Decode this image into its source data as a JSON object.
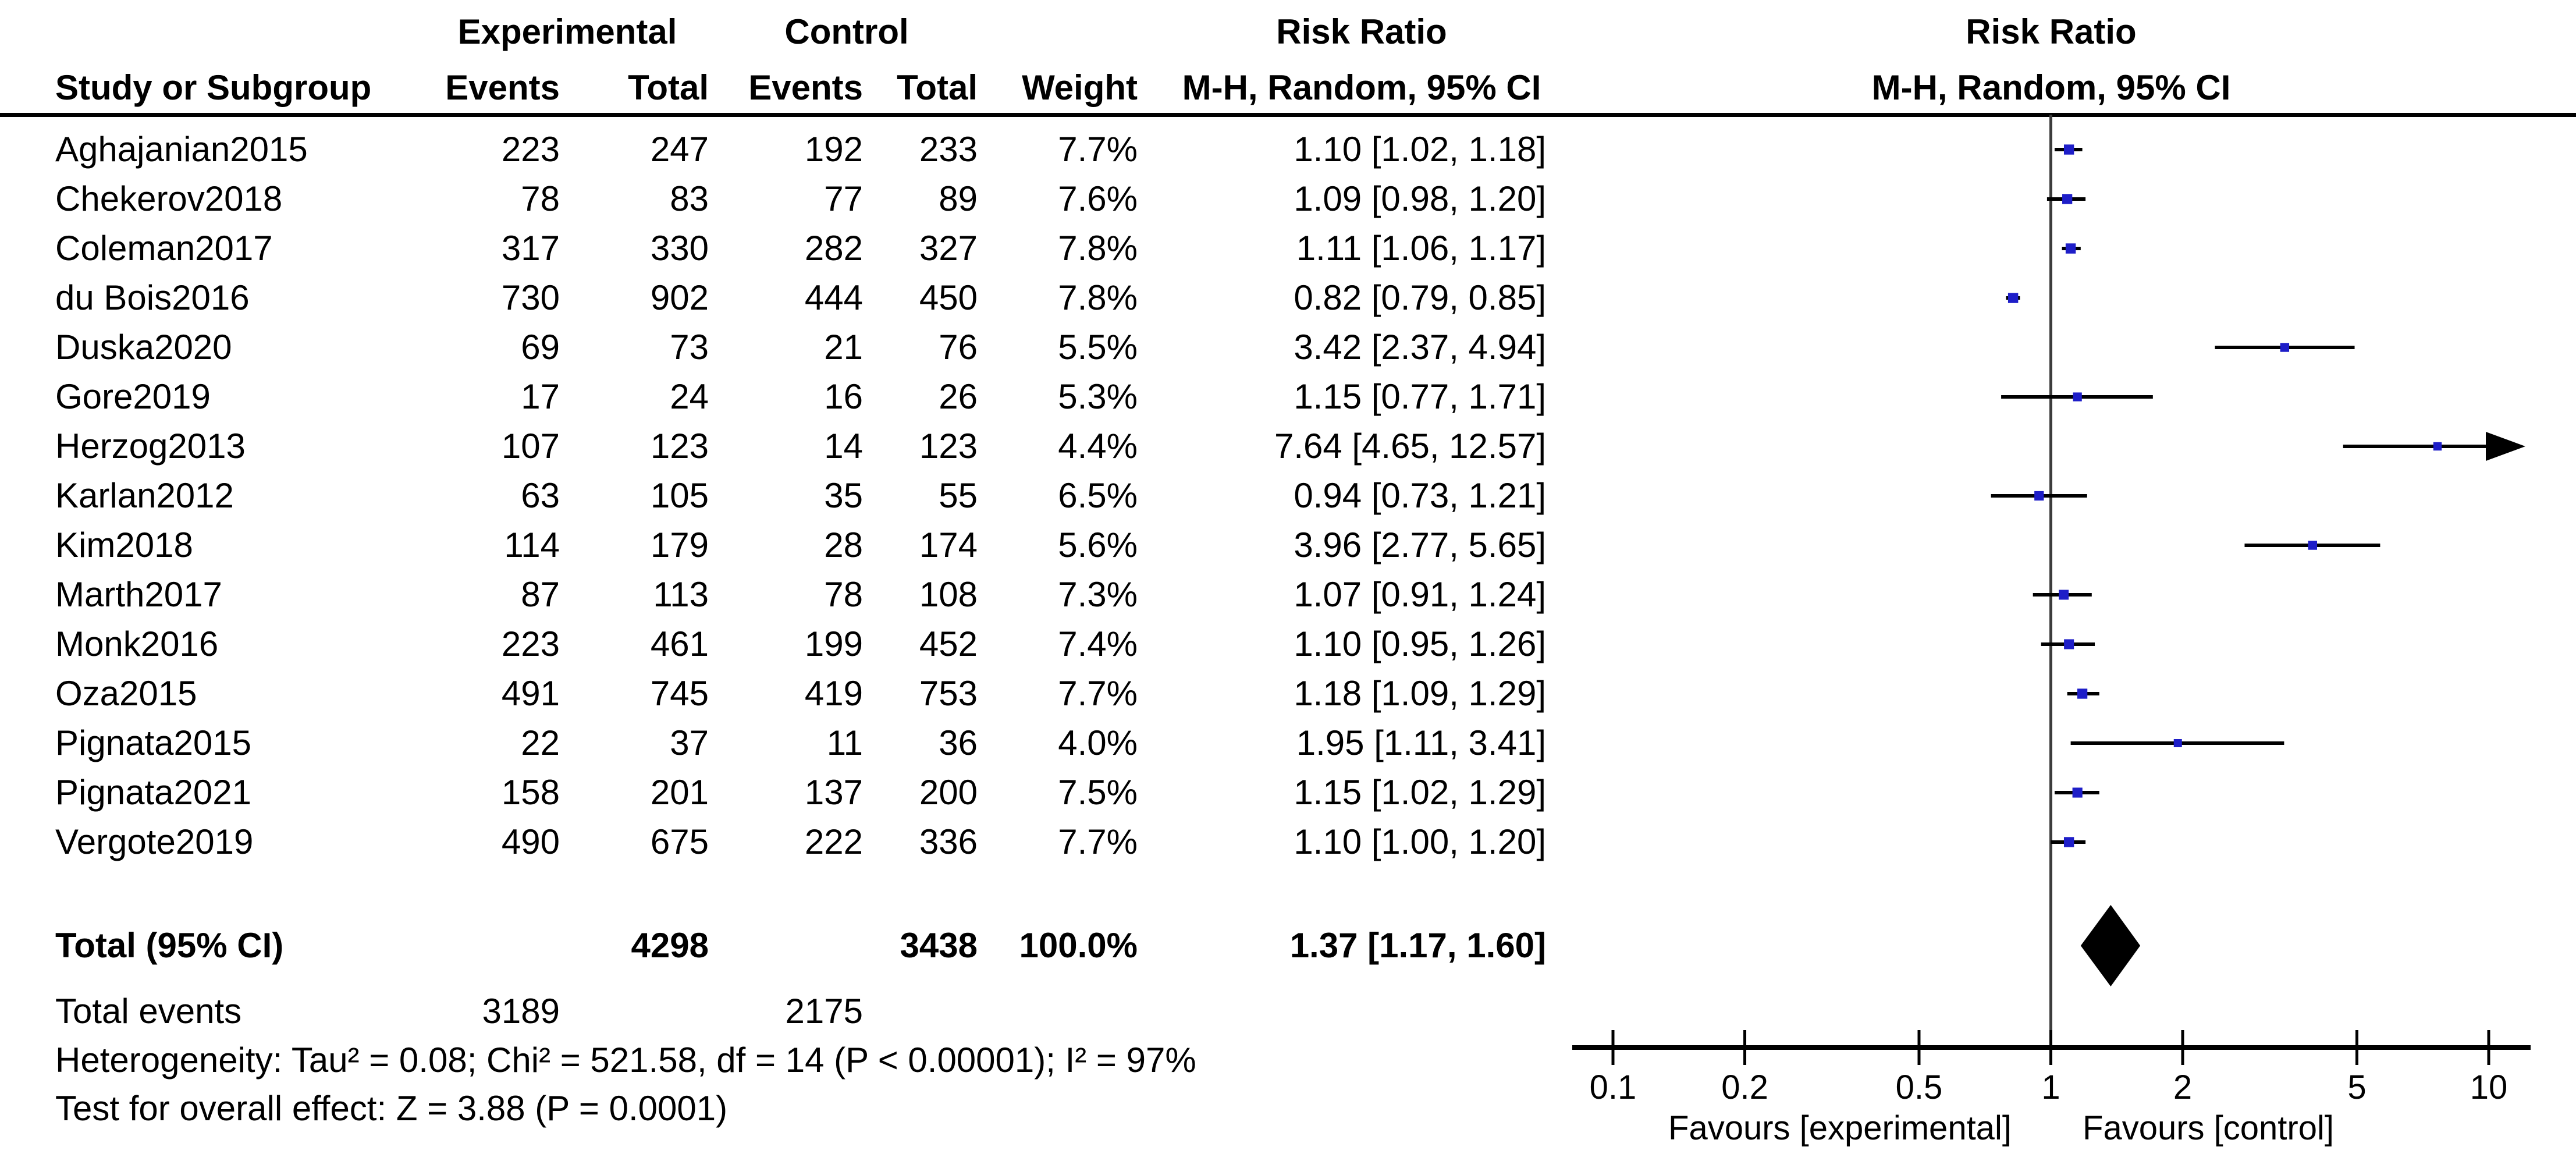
{
  "colors": {
    "marker_blue": "#1e1ec8",
    "line_black": "#000000",
    "no_effect_line": "#3c3c3c",
    "diamond": "#000000"
  },
  "header": {
    "col_study": "Study or Subgroup",
    "group_experimental": "Experimental",
    "group_control": "Control",
    "col_events": "Events",
    "col_total": "Total",
    "col_weight": "Weight",
    "rr_title_left": "Risk Ratio",
    "rr_subtitle_left": "M-H, Random, 95% CI",
    "rr_title_plot": "Risk Ratio",
    "rr_subtitle_plot": "M-H, Random, 95% CI"
  },
  "studies": [
    {
      "name": "Aghajanian2015",
      "exp_events": "223",
      "exp_total": "247",
      "ctl_events": "192",
      "ctl_total": "233",
      "weight": "7.7%",
      "weight_pct": 7.7,
      "rr_text": "1.10 [1.02, 1.18]",
      "rr": 1.1,
      "lo": 1.02,
      "hi": 1.18
    },
    {
      "name": "Chekerov2018",
      "exp_events": "78",
      "exp_total": "83",
      "ctl_events": "77",
      "ctl_total": "89",
      "weight": "7.6%",
      "weight_pct": 7.6,
      "rr_text": "1.09 [0.98, 1.20]",
      "rr": 1.09,
      "lo": 0.98,
      "hi": 1.2
    },
    {
      "name": "Coleman2017",
      "exp_events": "317",
      "exp_total": "330",
      "ctl_events": "282",
      "ctl_total": "327",
      "weight": "7.8%",
      "weight_pct": 7.8,
      "rr_text": "1.11 [1.06, 1.17]",
      "rr": 1.11,
      "lo": 1.06,
      "hi": 1.17
    },
    {
      "name": "du Bois2016",
      "exp_events": "730",
      "exp_total": "902",
      "ctl_events": "444",
      "ctl_total": "450",
      "weight": "7.8%",
      "weight_pct": 7.8,
      "rr_text": "0.82 [0.79, 0.85]",
      "rr": 0.82,
      "lo": 0.79,
      "hi": 0.85
    },
    {
      "name": "Duska2020",
      "exp_events": "69",
      "exp_total": "73",
      "ctl_events": "21",
      "ctl_total": "76",
      "weight": "5.5%",
      "weight_pct": 5.5,
      "rr_text": "3.42 [2.37, 4.94]",
      "rr": 3.42,
      "lo": 2.37,
      "hi": 4.94
    },
    {
      "name": "Gore2019",
      "exp_events": "17",
      "exp_total": "24",
      "ctl_events": "16",
      "ctl_total": "26",
      "weight": "5.3%",
      "weight_pct": 5.3,
      "rr_text": "1.15 [0.77, 1.71]",
      "rr": 1.15,
      "lo": 0.77,
      "hi": 1.71
    },
    {
      "name": "Herzog2013",
      "exp_events": "107",
      "exp_total": "123",
      "ctl_events": "14",
      "ctl_total": "123",
      "weight": "4.4%",
      "weight_pct": 4.4,
      "rr_text": "7.64 [4.65, 12.57]",
      "rr": 7.64,
      "lo": 4.65,
      "hi": 12.57,
      "arrow_high": true
    },
    {
      "name": "Karlan2012",
      "exp_events": "63",
      "exp_total": "105",
      "ctl_events": "35",
      "ctl_total": "55",
      "weight": "6.5%",
      "weight_pct": 6.5,
      "rr_text": "0.94 [0.73, 1.21]",
      "rr": 0.94,
      "lo": 0.73,
      "hi": 1.21
    },
    {
      "name": "Kim2018",
      "exp_events": "114",
      "exp_total": "179",
      "ctl_events": "28",
      "ctl_total": "174",
      "weight": "5.6%",
      "weight_pct": 5.6,
      "rr_text": "3.96 [2.77, 5.65]",
      "rr": 3.96,
      "lo": 2.77,
      "hi": 5.65
    },
    {
      "name": "Marth2017",
      "exp_events": "87",
      "exp_total": "113",
      "ctl_events": "78",
      "ctl_total": "108",
      "weight": "7.3%",
      "weight_pct": 7.3,
      "rr_text": "1.07 [0.91, 1.24]",
      "rr": 1.07,
      "lo": 0.91,
      "hi": 1.24
    },
    {
      "name": "Monk2016",
      "exp_events": "223",
      "exp_total": "461",
      "ctl_events": "199",
      "ctl_total": "452",
      "weight": "7.4%",
      "weight_pct": 7.4,
      "rr_text": "1.10 [0.95, 1.26]",
      "rr": 1.1,
      "lo": 0.95,
      "hi": 1.26
    },
    {
      "name": "Oza2015",
      "exp_events": "491",
      "exp_total": "745",
      "ctl_events": "419",
      "ctl_total": "753",
      "weight": "7.7%",
      "weight_pct": 7.7,
      "rr_text": "1.18 [1.09, 1.29]",
      "rr": 1.18,
      "lo": 1.09,
      "hi": 1.29
    },
    {
      "name": "Pignata2015",
      "exp_events": "22",
      "exp_total": "37",
      "ctl_events": "11",
      "ctl_total": "36",
      "weight": "4.0%",
      "weight_pct": 4.0,
      "rr_text": "1.95 [1.11, 3.41]",
      "rr": 1.95,
      "lo": 1.11,
      "hi": 3.41
    },
    {
      "name": "Pignata2021",
      "exp_events": "158",
      "exp_total": "201",
      "ctl_events": "137",
      "ctl_total": "200",
      "weight": "7.5%",
      "weight_pct": 7.5,
      "rr_text": "1.15 [1.02, 1.29]",
      "rr": 1.15,
      "lo": 1.02,
      "hi": 1.29
    },
    {
      "name": "Vergote2019",
      "exp_events": "490",
      "exp_total": "675",
      "ctl_events": "222",
      "ctl_total": "336",
      "weight": "7.7%",
      "weight_pct": 7.7,
      "rr_text": "1.10 [1.00, 1.20]",
      "rr": 1.1,
      "lo": 1.0,
      "hi": 1.2
    }
  ],
  "totals": {
    "label": "Total (95% CI)",
    "exp_total": "4298",
    "ctl_total": "3438",
    "weight": "100.0%",
    "rr_text": "1.37 [1.17, 1.60]",
    "rr": 1.37,
    "lo": 1.17,
    "hi": 1.6,
    "events_label": "Total events",
    "exp_events": "3189",
    "ctl_events": "2175"
  },
  "footnotes": {
    "heterogeneity": "Heterogeneity: Tau² = 0.08; Chi² = 521.58, df = 14 (P < 0.00001); I² = 97%",
    "overall_effect": "Test for overall effect: Z = 3.88 (P = 0.0001)"
  },
  "axis": {
    "ticks": [
      0.1,
      0.2,
      0.5,
      1,
      2,
      5,
      10
    ],
    "tick_labels": [
      "0.1",
      "0.2",
      "0.5",
      "1",
      "2",
      "5",
      "10"
    ],
    "favours_left": "Favours [experimental]",
    "favours_right": "Favours [control]"
  },
  "chart_data": {
    "type": "scatter",
    "subtype": "forest-plot-meta-analysis",
    "title": "Risk Ratio",
    "effect_measure": "M-H, Random, 95% CI",
    "x_scale": "log10",
    "x_ticks": [
      0.1,
      0.2,
      0.5,
      1,
      2,
      5,
      10
    ],
    "x_range": [
      0.08,
      12.5
    ],
    "no_effect_value": 1,
    "series": [
      {
        "study": "Aghajanian2015",
        "rr": 1.1,
        "ci_low": 1.02,
        "ci_high": 1.18,
        "weight_pct": 7.7
      },
      {
        "study": "Chekerov2018",
        "rr": 1.09,
        "ci_low": 0.98,
        "ci_high": 1.2,
        "weight_pct": 7.6
      },
      {
        "study": "Coleman2017",
        "rr": 1.11,
        "ci_low": 1.06,
        "ci_high": 1.17,
        "weight_pct": 7.8
      },
      {
        "study": "du Bois2016",
        "rr": 0.82,
        "ci_low": 0.79,
        "ci_high": 0.85,
        "weight_pct": 7.8
      },
      {
        "study": "Duska2020",
        "rr": 3.42,
        "ci_low": 2.37,
        "ci_high": 4.94,
        "weight_pct": 5.5
      },
      {
        "study": "Gore2019",
        "rr": 1.15,
        "ci_low": 0.77,
        "ci_high": 1.71,
        "weight_pct": 5.3
      },
      {
        "study": "Herzog2013",
        "rr": 7.64,
        "ci_low": 4.65,
        "ci_high": 12.57,
        "weight_pct": 4.4
      },
      {
        "study": "Karlan2012",
        "rr": 0.94,
        "ci_low": 0.73,
        "ci_high": 1.21,
        "weight_pct": 6.5
      },
      {
        "study": "Kim2018",
        "rr": 3.96,
        "ci_low": 2.77,
        "ci_high": 5.65,
        "weight_pct": 5.6
      },
      {
        "study": "Marth2017",
        "rr": 1.07,
        "ci_low": 0.91,
        "ci_high": 1.24,
        "weight_pct": 7.3
      },
      {
        "study": "Monk2016",
        "rr": 1.1,
        "ci_low": 0.95,
        "ci_high": 1.26,
        "weight_pct": 7.4
      },
      {
        "study": "Oza2015",
        "rr": 1.18,
        "ci_low": 1.09,
        "ci_high": 1.29,
        "weight_pct": 7.7
      },
      {
        "study": "Pignata2015",
        "rr": 1.95,
        "ci_low": 1.11,
        "ci_high": 3.41,
        "weight_pct": 4.0
      },
      {
        "study": "Pignata2021",
        "rr": 1.15,
        "ci_low": 1.02,
        "ci_high": 1.29,
        "weight_pct": 7.5
      },
      {
        "study": "Vergote2019",
        "rr": 1.1,
        "ci_low": 1.0,
        "ci_high": 1.2,
        "weight_pct": 7.7
      }
    ],
    "total": {
      "label": "Total (95% CI)",
      "rr": 1.37,
      "ci_low": 1.17,
      "ci_high": 1.6,
      "weight_pct": 100.0
    },
    "annotations": [
      "Heterogeneity: Tau² = 0.08; Chi² = 521.58, df = 14 (P < 0.00001); I² = 97%",
      "Test for overall effect: Z = 3.88 (P = 0.0001)"
    ],
    "legend": {
      "left_of_1": "Favours [experimental]",
      "right_of_1": "Favours [control]"
    }
  }
}
